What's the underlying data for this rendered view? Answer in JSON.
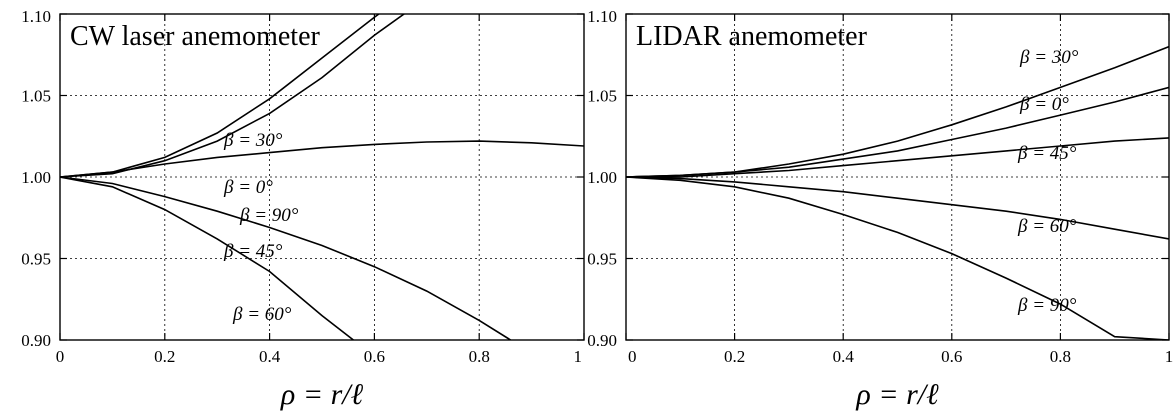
{
  "chart_data": [
    {
      "type": "line",
      "title": "CW laser anemometer",
      "xlabel": "ρ = r/ℓ",
      "ylabel": "",
      "xlim": [
        0,
        1
      ],
      "ylim": [
        0.9,
        1.1
      ],
      "xticks": [
        "0",
        "0.2",
        "0.4",
        "0.6",
        "0.8",
        "1"
      ],
      "yticks": [
        "0.90",
        "0.95",
        "1.00",
        "1.05",
        "1.10"
      ],
      "grid": true,
      "series": [
        {
          "name": "β = 30°",
          "x": [
            0,
            0.1,
            0.2,
            0.3,
            0.4,
            0.5,
            0.6,
            0.65
          ],
          "y": [
            1.0,
            1.003,
            1.012,
            1.027,
            1.048,
            1.073,
            1.098,
            1.11
          ]
        },
        {
          "name": "β =  0°",
          "x": [
            0,
            0.1,
            0.2,
            0.3,
            0.4,
            0.5,
            0.6,
            0.7
          ],
          "y": [
            1.0,
            1.002,
            1.01,
            1.022,
            1.039,
            1.061,
            1.087,
            1.11
          ]
        },
        {
          "name": "β = 45°",
          "x": [
            0,
            0.1,
            0.2,
            0.3,
            0.4,
            0.5,
            0.6,
            0.7,
            0.8,
            0.9,
            1.0
          ],
          "y": [
            1.0,
            1.003,
            1.008,
            1.012,
            1.015,
            1.018,
            1.02,
            1.0215,
            1.022,
            1.021,
            1.019
          ]
        },
        {
          "name": "β = 90°",
          "x": [
            0,
            0.1,
            0.2,
            0.3,
            0.4,
            0.5,
            0.6,
            0.7,
            0.8,
            0.86
          ],
          "y": [
            1.0,
            0.996,
            0.988,
            0.979,
            0.969,
            0.958,
            0.945,
            0.93,
            0.912,
            0.9
          ]
        },
        {
          "name": "β = 60°",
          "x": [
            0,
            0.1,
            0.2,
            0.3,
            0.4,
            0.5,
            0.56
          ],
          "y": [
            1.0,
            0.994,
            0.98,
            0.962,
            0.942,
            0.915,
            0.9
          ]
        }
      ]
    },
    {
      "type": "line",
      "title": "LIDAR anemometer",
      "xlabel": "ρ = r/ℓ",
      "ylabel": "",
      "xlim": [
        0,
        1
      ],
      "ylim": [
        0.9,
        1.1
      ],
      "xticks": [
        "0",
        "0.2",
        "0.4",
        "0.6",
        "0.8",
        "1"
      ],
      "yticks": [
        "0.90",
        "0.95",
        "1.00",
        "1.05",
        "1.10"
      ],
      "grid": true,
      "series": [
        {
          "name": "β = 30°",
          "x": [
            0,
            0.1,
            0.2,
            0.3,
            0.4,
            0.5,
            0.6,
            0.7,
            0.8,
            0.9,
            1.0
          ],
          "y": [
            1.0,
            1.001,
            1.003,
            1.008,
            1.014,
            1.022,
            1.032,
            1.043,
            1.055,
            1.067,
            1.08
          ]
        },
        {
          "name": "β =  0°",
          "x": [
            0,
            0.1,
            0.2,
            0.3,
            0.4,
            0.5,
            0.6,
            0.7,
            0.8,
            0.9,
            1.0
          ],
          "y": [
            1.0,
            1.001,
            1.003,
            1.006,
            1.011,
            1.016,
            1.023,
            1.03,
            1.038,
            1.046,
            1.055
          ]
        },
        {
          "name": "β = 45°",
          "x": [
            0,
            0.1,
            0.2,
            0.3,
            0.4,
            0.5,
            0.6,
            0.7,
            0.8,
            0.9,
            1.0
          ],
          "y": [
            1.0,
            1.0,
            1.002,
            1.004,
            1.007,
            1.01,
            1.013,
            1.016,
            1.019,
            1.022,
            1.024
          ]
        },
        {
          "name": "β = 60°",
          "x": [
            0,
            0.1,
            0.2,
            0.3,
            0.4,
            0.5,
            0.6,
            0.7,
            0.8,
            0.9,
            1.0
          ],
          "y": [
            1.0,
            0.999,
            0.997,
            0.994,
            0.991,
            0.987,
            0.983,
            0.979,
            0.974,
            0.968,
            0.962
          ]
        },
        {
          "name": "β = 90°",
          "x": [
            0,
            0.1,
            0.2,
            0.3,
            0.4,
            0.5,
            0.6,
            0.7,
            0.8,
            0.9,
            1.0
          ],
          "y": [
            1.0,
            0.998,
            0.994,
            0.987,
            0.977,
            0.966,
            0.953,
            0.938,
            0.922,
            0.902,
            0.9
          ]
        }
      ]
    }
  ]
}
